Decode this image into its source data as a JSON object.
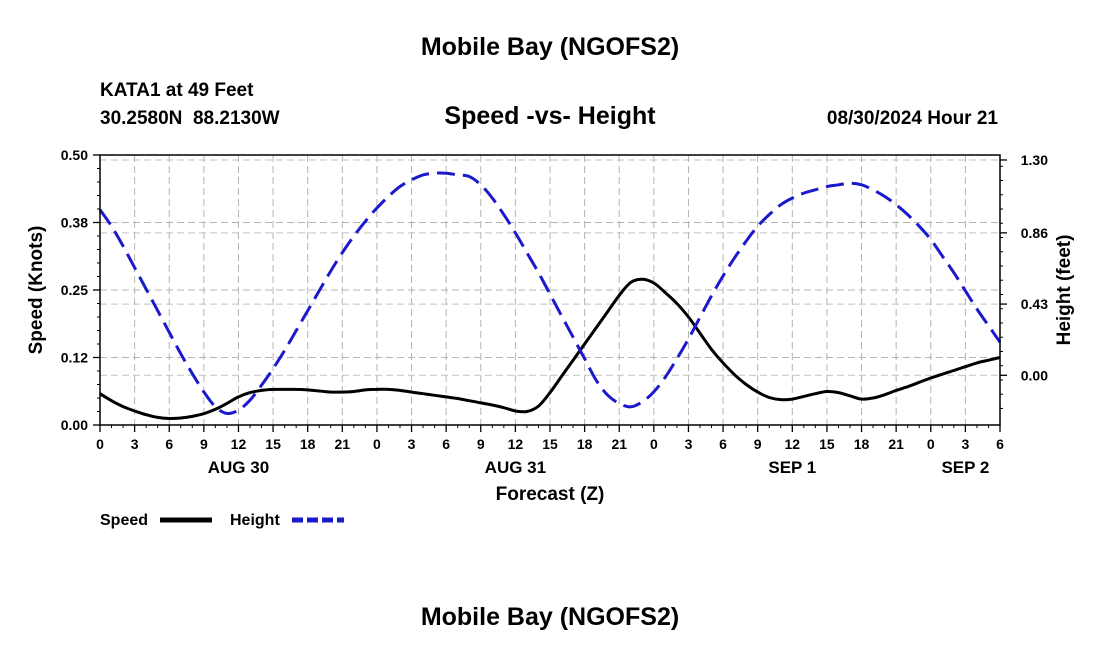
{
  "chart_data": {
    "type": "line",
    "title": "Mobile Bay (NGOFS2)",
    "footer_title": "Mobile Bay (NGOFS2)",
    "station": "KATA1 at 49 Feet",
    "coords": "30.2580N  88.2130W",
    "subtitle": "Speed -vs- Height",
    "timestamp": "08/30/2024 Hour 21",
    "xlabel": "Forecast (Z)",
    "y_left_label": "Speed (Knots)",
    "y_right_label": "Height (feet)",
    "x_range": [
      0,
      78
    ],
    "y_left_range": [
      0,
      0.5
    ],
    "y_right_range": [
      -0.3,
      1.33
    ],
    "x_tick_labels": [
      "0",
      "3",
      "6",
      "9",
      "12",
      "15",
      "18",
      "21",
      "0",
      "3",
      "6",
      "9",
      "12",
      "15",
      "18",
      "21",
      "0",
      "3",
      "6",
      "9",
      "12",
      "15",
      "18",
      "21",
      "0",
      "3",
      "6"
    ],
    "date_labels": [
      {
        "text": "AUG 30",
        "x": 12
      },
      {
        "text": "AUG 31",
        "x": 36
      },
      {
        "text": "SEP 1",
        "x": 60
      },
      {
        "text": "SEP 2",
        "x": 75
      }
    ],
    "y_left_ticks": [
      {
        "value": 0,
        "label": "0.00"
      },
      {
        "value": 0.125,
        "label": "0.12"
      },
      {
        "value": 0.25,
        "label": "0.25"
      },
      {
        "value": 0.375,
        "label": "0.38"
      },
      {
        "value": 0.5,
        "label": "0.50"
      }
    ],
    "y_right_ticks": [
      {
        "value": 0.0,
        "label": "0.00"
      },
      {
        "value": 0.43,
        "label": "0.43"
      },
      {
        "value": 0.86,
        "label": "0.86"
      },
      {
        "value": 1.3,
        "label": "1.30"
      }
    ],
    "series": [
      {
        "name": "Speed",
        "axis": "left",
        "color": "#000000",
        "dash": "solid",
        "x": [
          0,
          1,
          2,
          3,
          4,
          5,
          6,
          7,
          8,
          9,
          10,
          11,
          12,
          13,
          14,
          15,
          16,
          17,
          18,
          19,
          20,
          21,
          22,
          23,
          24,
          25,
          26,
          27,
          28,
          29,
          30,
          31,
          32,
          33,
          34,
          35,
          36,
          37,
          38,
          39,
          40,
          41,
          42,
          43,
          44,
          45,
          46,
          47,
          48,
          49,
          50,
          51,
          52,
          53,
          54,
          55,
          56,
          57,
          58,
          59,
          60,
          61,
          62,
          63,
          64,
          65,
          66,
          67,
          68,
          69,
          70,
          71,
          72,
          73,
          74,
          75,
          76,
          77,
          78
        ],
        "values": [
          0.058,
          0.045,
          0.034,
          0.026,
          0.019,
          0.014,
          0.012,
          0.013,
          0.016,
          0.021,
          0.029,
          0.04,
          0.052,
          0.06,
          0.064,
          0.066,
          0.066,
          0.066,
          0.065,
          0.063,
          0.061,
          0.061,
          0.062,
          0.065,
          0.066,
          0.066,
          0.064,
          0.061,
          0.058,
          0.055,
          0.052,
          0.049,
          0.045,
          0.041,
          0.037,
          0.032,
          0.026,
          0.025,
          0.035,
          0.06,
          0.09,
          0.12,
          0.15,
          0.18,
          0.21,
          0.24,
          0.264,
          0.27,
          0.263,
          0.245,
          0.225,
          0.2,
          0.17,
          0.14,
          0.115,
          0.093,
          0.075,
          0.061,
          0.051,
          0.047,
          0.048,
          0.053,
          0.058,
          0.062,
          0.06,
          0.054,
          0.048,
          0.05,
          0.056,
          0.064,
          0.071,
          0.079,
          0.087,
          0.094,
          0.101,
          0.108,
          0.115,
          0.12,
          0.125
        ]
      },
      {
        "name": "Height",
        "axis": "right",
        "color": "#1a1acc",
        "dash": "dashed",
        "x": [
          0,
          1,
          2,
          3,
          4,
          5,
          6,
          7,
          8,
          9,
          10,
          11,
          12,
          13,
          14,
          15,
          16,
          17,
          18,
          19,
          20,
          21,
          22,
          23,
          24,
          25,
          26,
          27,
          28,
          29,
          30,
          31,
          32,
          33,
          34,
          35,
          36,
          37,
          38,
          39,
          40,
          41,
          42,
          43,
          44,
          45,
          46,
          47,
          48,
          49,
          50,
          51,
          52,
          53,
          54,
          55,
          56,
          57,
          58,
          59,
          60,
          61,
          62,
          63,
          64,
          65,
          66,
          67,
          68,
          69,
          70,
          71,
          72,
          73,
          74,
          75,
          76,
          77,
          78
        ],
        "values": [
          1.0,
          0.9,
          0.78,
          0.65,
          0.52,
          0.39,
          0.26,
          0.13,
          0.01,
          -0.1,
          -0.19,
          -0.23,
          -0.21,
          -0.15,
          -0.06,
          0.04,
          0.15,
          0.27,
          0.39,
          0.51,
          0.63,
          0.74,
          0.84,
          0.93,
          1.01,
          1.08,
          1.14,
          1.18,
          1.21,
          1.22,
          1.22,
          1.21,
          1.2,
          1.15,
          1.07,
          0.97,
          0.86,
          0.74,
          0.62,
          0.49,
          0.36,
          0.23,
          0.1,
          -0.03,
          -0.12,
          -0.17,
          -0.19,
          -0.16,
          -0.1,
          -0.01,
          0.1,
          0.22,
          0.35,
          0.48,
          0.6,
          0.71,
          0.81,
          0.9,
          0.97,
          1.03,
          1.07,
          1.1,
          1.12,
          1.14,
          1.15,
          1.16,
          1.15,
          1.12,
          1.08,
          1.03,
          0.97,
          0.9,
          0.82,
          0.72,
          0.62,
          0.51,
          0.4,
          0.3,
          0.2
        ]
      }
    ],
    "legend": [
      {
        "label": "Speed",
        "color": "#000000",
        "dash": "solid"
      },
      {
        "label": "Height",
        "color": "#1a1acc",
        "dash": "dashed"
      }
    ],
    "grid": true
  }
}
